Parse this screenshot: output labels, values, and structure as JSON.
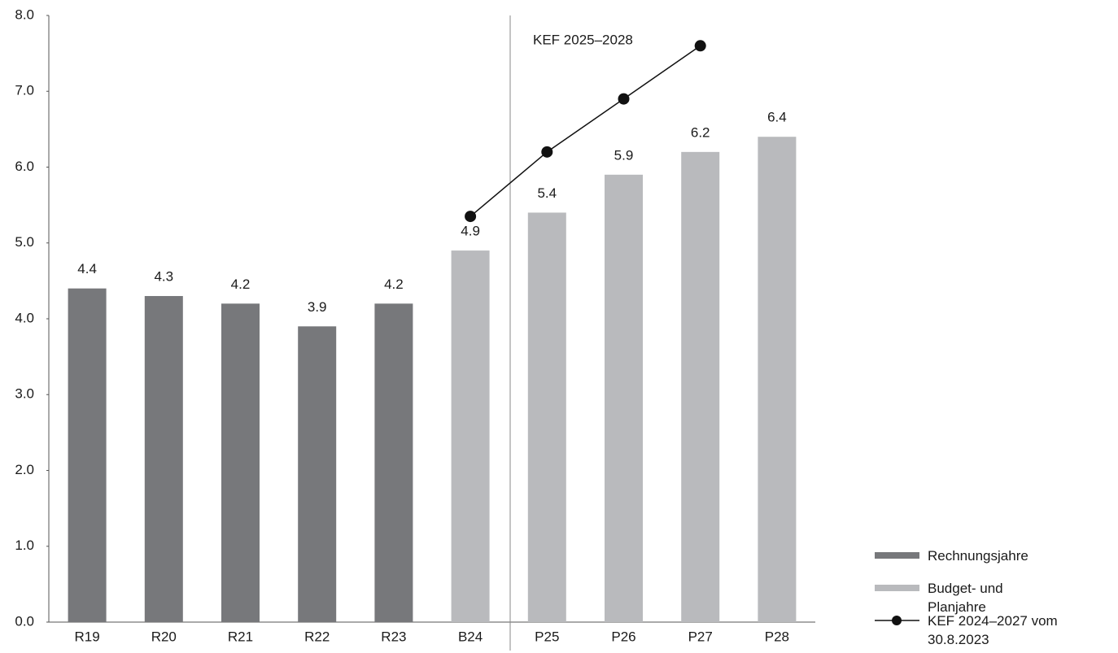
{
  "chart_data": {
    "type": "bar",
    "categories": [
      "R19",
      "R20",
      "R21",
      "R22",
      "R23",
      "B24",
      "P25",
      "P26",
      "P27",
      "P28"
    ],
    "series": [
      {
        "name": "Rechnungsjahre",
        "color": "#77787b",
        "values": [
          4.4,
          4.3,
          4.2,
          3.9,
          4.2,
          null,
          null,
          null,
          null,
          null
        ]
      },
      {
        "name": "Budget- und Planjahre",
        "color": "#b9babd",
        "values": [
          null,
          null,
          null,
          null,
          null,
          4.9,
          5.4,
          5.9,
          6.2,
          6.4
        ]
      },
      {
        "name": "KEF 2024–2027 vom 30.8.2023",
        "type": "line",
        "color": "#111111",
        "values": [
          null,
          null,
          null,
          null,
          null,
          5.35,
          6.2,
          6.9,
          7.6,
          null
        ]
      }
    ],
    "annotation": "KEF 2025–2028",
    "ylim": [
      0,
      8
    ],
    "yticks": [
      {
        "value": 0,
        "label": "0.0"
      },
      {
        "value": 1,
        "label": "1.0"
      },
      {
        "value": 2,
        "label": "2.0"
      },
      {
        "value": 3,
        "label": "3.0"
      },
      {
        "value": 4,
        "label": "4.0"
      },
      {
        "value": 5,
        "label": "5.0"
      },
      {
        "value": 6,
        "label": "6.0"
      },
      {
        "value": 7,
        "label": "7.0"
      },
      {
        "value": 8,
        "label": "8.0"
      }
    ],
    "grid": false,
    "legend": "bottom-right"
  }
}
